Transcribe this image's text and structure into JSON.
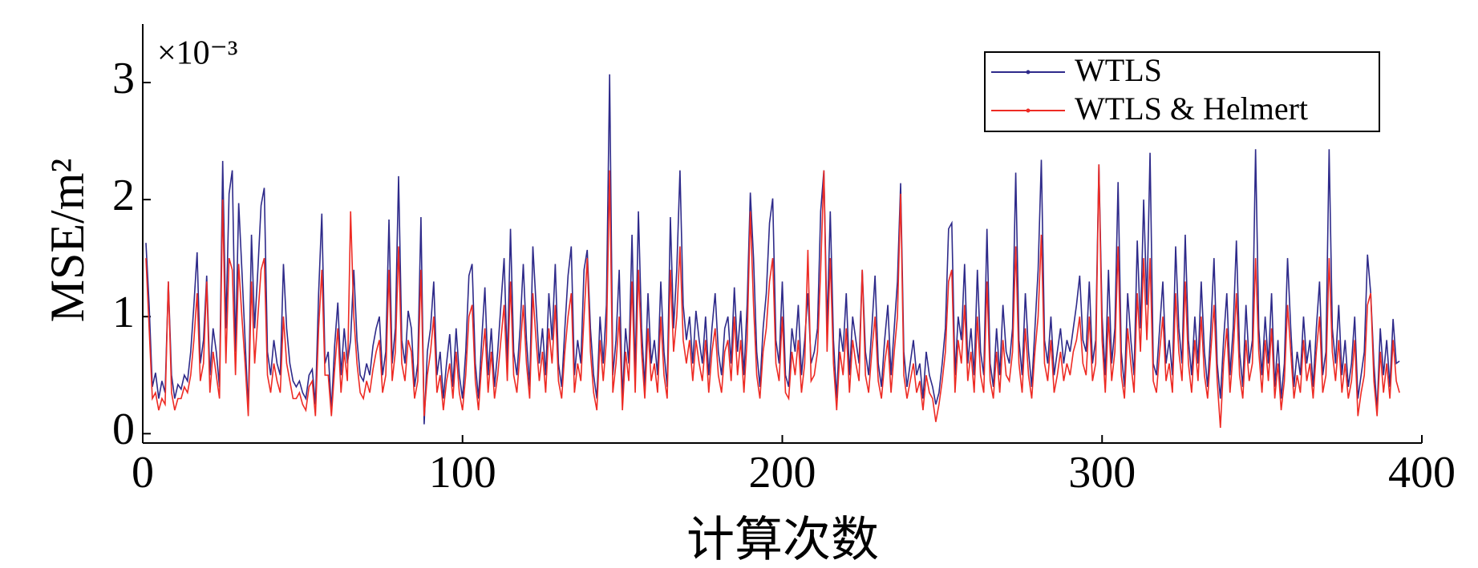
{
  "chart_data": {
    "type": "line",
    "ylabel": "MSE/m²",
    "xlabel": "计算次数",
    "multiplier": "×10⁻³",
    "xlim": [
      0,
      400
    ],
    "xticks": [
      0,
      100,
      200,
      300,
      400
    ],
    "ylim": [
      -0.08,
      3.5
    ],
    "yticks": [
      0,
      1,
      2,
      3
    ],
    "legend": "upper right",
    "x": [
      1,
      2,
      3,
      4,
      5,
      6,
      7,
      8,
      9,
      10,
      11,
      12,
      13,
      14,
      15,
      16,
      17,
      18,
      19,
      20,
      21,
      22,
      23,
      24,
      25,
      26,
      27,
      28,
      29,
      30,
      31,
      32,
      33,
      34,
      35,
      36,
      37,
      38,
      39,
      40,
      41,
      42,
      43,
      44,
      45,
      46,
      47,
      48,
      49,
      50,
      51,
      52,
      53,
      54,
      55,
      56,
      57,
      58,
      59,
      60,
      61,
      62,
      63,
      64,
      65,
      66,
      67,
      68,
      69,
      70,
      71,
      72,
      73,
      74,
      75,
      76,
      77,
      78,
      79,
      80,
      81,
      82,
      83,
      84,
      85,
      86,
      87,
      88,
      89,
      90,
      91,
      92,
      93,
      94,
      95,
      96,
      97,
      98,
      99,
      100,
      101,
      102,
      103,
      104,
      105,
      106,
      107,
      108,
      109,
      110,
      111,
      112,
      113,
      114,
      115,
      116,
      117,
      118,
      119,
      120,
      121,
      122,
      123,
      124,
      125,
      126,
      127,
      128,
      129,
      130,
      131,
      132,
      133,
      134,
      135,
      136,
      137,
      138,
      139,
      140,
      141,
      142,
      143,
      144,
      145,
      146,
      147,
      148,
      149,
      150,
      151,
      152,
      153,
      154,
      155,
      156,
      157,
      158,
      159,
      160,
      161,
      162,
      163,
      164,
      165,
      166,
      167,
      168,
      169,
      170,
      171,
      172,
      173,
      174,
      175,
      176,
      177,
      178,
      179,
      180,
      181,
      182,
      183,
      184,
      185,
      186,
      187,
      188,
      189,
      190,
      191,
      192,
      193,
      194,
      195,
      196,
      197,
      198,
      199,
      200,
      201,
      202,
      203,
      204,
      205,
      206,
      207,
      208,
      209,
      210,
      211,
      212,
      213,
      214,
      215,
      216,
      217,
      218,
      219,
      220,
      221,
      222,
      223,
      224,
      225,
      226,
      227,
      228,
      229,
      230,
      231,
      232,
      233,
      234,
      235,
      236,
      237,
      238,
      239,
      240,
      241,
      242,
      243,
      244,
      245,
      246,
      247,
      248,
      249,
      250,
      251,
      252,
      253,
      254,
      255,
      256,
      257,
      258,
      259,
      260,
      261,
      262,
      263,
      264,
      265,
      266,
      267,
      268,
      269,
      270,
      271,
      272,
      273,
      274,
      275,
      276,
      277,
      278,
      279,
      280,
      281,
      282,
      283,
      284,
      285,
      286,
      287,
      288,
      289,
      290,
      291,
      292,
      293,
      294,
      295,
      296,
      297,
      298,
      299,
      300,
      301,
      302,
      303,
      304,
      305,
      306,
      307,
      308,
      309,
      310,
      311,
      312,
      313,
      314,
      315,
      316,
      317,
      318,
      319,
      320,
      321,
      322,
      323,
      324,
      325,
      326,
      327,
      328,
      329,
      330,
      331,
      332,
      333,
      334,
      335,
      336,
      337,
      338,
      339,
      340,
      341,
      342,
      343,
      344,
      345,
      346,
      347,
      348,
      349,
      350,
      351,
      352,
      353,
      354,
      355,
      356,
      357,
      358,
      359,
      360,
      361,
      362,
      363,
      364,
      365,
      366,
      367,
      368,
      369,
      370,
      371,
      372,
      373,
      374,
      375,
      376,
      377,
      378,
      379,
      380,
      381,
      382,
      383,
      384,
      385,
      386,
      387,
      388,
      389,
      390,
      391,
      392,
      393
    ],
    "series": [
      {
        "name": "WTLS",
        "color": "#2e2a8a",
        "values": [
          1.63,
          1.1,
          0.4,
          0.52,
          0.3,
          0.45,
          0.35,
          1.3,
          0.5,
          0.3,
          0.42,
          0.38,
          0.5,
          0.45,
          0.7,
          1.1,
          1.55,
          0.6,
          0.8,
          1.35,
          0.5,
          0.9,
          0.7,
          0.4,
          2.33,
          0.9,
          2.05,
          2.25,
          0.7,
          1.97,
          1.4,
          0.8,
          0.2,
          1.7,
          0.9,
          1.4,
          1.95,
          2.1,
          0.7,
          0.5,
          0.8,
          0.6,
          0.5,
          1.45,
          0.9,
          0.6,
          0.45,
          0.4,
          0.45,
          0.35,
          0.3,
          0.5,
          0.55,
          0.25,
          1.2,
          1.88,
          0.6,
          0.7,
          0.2,
          0.75,
          1.12,
          0.5,
          0.9,
          0.6,
          0.8,
          1.4,
          0.8,
          0.5,
          0.45,
          0.6,
          0.5,
          0.75,
          0.9,
          1.0,
          0.5,
          0.7,
          1.83,
          0.6,
          0.9,
          2.2,
          0.8,
          0.6,
          1.05,
          0.9,
          0.4,
          0.6,
          1.85,
          0.08,
          0.7,
          0.9,
          1.3,
          0.5,
          0.7,
          0.3,
          0.6,
          0.85,
          0.4,
          0.9,
          0.5,
          0.3,
          0.7,
          1.35,
          1.45,
          0.6,
          0.3,
          0.8,
          1.25,
          0.5,
          0.9,
          0.4,
          0.7,
          1.1,
          1.5,
          0.6,
          1.75,
          0.7,
          0.5,
          0.9,
          1.45,
          0.8,
          0.4,
          1.6,
          1.1,
          0.6,
          0.9,
          0.5,
          1.2,
          0.8,
          1.45,
          0.6,
          0.4,
          0.9,
          1.35,
          1.6,
          0.5,
          0.8,
          0.6,
          1.4,
          1.57,
          0.9,
          0.5,
          0.3,
          1.0,
          0.6,
          1.1,
          3.07,
          0.5,
          0.8,
          1.4,
          0.3,
          0.9,
          0.6,
          1.7,
          0.5,
          1.9,
          0.9,
          0.4,
          1.2,
          0.6,
          0.8,
          0.5,
          1.3,
          0.7,
          0.4,
          1.85,
          0.9,
          1.4,
          2.25,
          1.1,
          0.8,
          1.0,
          0.6,
          1.05,
          0.8,
          0.6,
          1.0,
          0.5,
          0.9,
          1.2,
          0.7,
          0.5,
          0.9,
          1.0,
          0.6,
          1.25,
          0.7,
          1.05,
          0.5,
          1.1,
          2.06,
          1.5,
          0.7,
          0.4,
          0.9,
          1.2,
          1.8,
          2.01,
          0.8,
          0.6,
          1.3,
          0.5,
          0.4,
          0.9,
          0.7,
          1.1,
          0.5,
          0.8,
          1.2,
          0.6,
          0.7,
          0.9,
          1.9,
          2.25,
          0.9,
          1.9,
          0.8,
          0.3,
          0.9,
          0.7,
          1.2,
          0.5,
          1.0,
          0.8,
          0.6,
          1.4,
          0.7,
          0.5,
          0.9,
          1.35,
          0.6,
          0.4,
          0.8,
          1.1,
          0.5,
          0.9,
          1.3,
          2.14,
          0.7,
          0.4,
          0.6,
          0.8,
          0.5,
          0.6,
          0.3,
          0.7,
          0.5,
          0.4,
          0.25,
          0.35,
          0.6,
          0.9,
          1.75,
          1.8,
          0.5,
          1.0,
          0.8,
          1.45,
          0.6,
          0.9,
          0.5,
          1.4,
          0.7,
          0.5,
          1.75,
          0.6,
          0.4,
          0.9,
          0.5,
          1.1,
          0.7,
          0.6,
          0.9,
          2.23,
          0.8,
          0.5,
          1.2,
          0.7,
          0.4,
          0.9,
          1.4,
          2.34,
          0.8,
          0.6,
          1.0,
          0.5,
          0.7,
          0.9,
          0.6,
          0.8,
          0.7,
          0.9,
          1.1,
          1.35,
          0.8,
          0.7,
          1.3,
          0.6,
          0.8,
          2.3,
          1.0,
          0.5,
          1.4,
          0.6,
          0.9,
          2.15,
          0.7,
          0.4,
          1.2,
          0.8,
          0.5,
          1.65,
          0.9,
          2.0,
          1.1,
          2.4,
          0.6,
          0.5,
          0.9,
          1.3,
          0.6,
          0.8,
          0.5,
          1.6,
          0.9,
          0.6,
          1.7,
          0.8,
          0.5,
          1.0,
          0.6,
          1.3,
          0.7,
          0.4,
          0.9,
          1.5,
          0.6,
          0.3,
          0.8,
          1.2,
          0.5,
          0.9,
          1.65,
          0.7,
          0.4,
          1.1,
          0.6,
          0.8,
          2.43,
          0.9,
          0.5,
          1.0,
          0.6,
          1.2,
          0.4,
          0.8,
          0.3,
          0.6,
          1.5,
          0.9,
          0.4,
          0.7,
          0.5,
          1.0,
          0.6,
          0.8,
          0.4,
          0.9,
          1.3,
          0.5,
          0.7,
          2.43,
          0.9,
          0.6,
          1.1,
          0.5,
          0.8,
          0.4,
          0.6,
          1.0,
          0.3,
          0.5,
          0.7,
          1.53,
          1.2,
          0.6,
          0.2,
          0.9,
          0.5,
          0.8,
          0.4,
          0.98,
          0.6,
          0.62
        ]
      },
      {
        "name": "WTLS & Helmert",
        "color": "#ee2b24",
        "values": [
          1.5,
          0.9,
          0.3,
          0.35,
          0.2,
          0.3,
          0.25,
          1.3,
          0.35,
          0.2,
          0.3,
          0.3,
          0.4,
          0.35,
          0.5,
          0.8,
          1.2,
          0.45,
          0.6,
          1.3,
          0.35,
          0.7,
          0.5,
          0.3,
          2.0,
          0.6,
          1.5,
          1.4,
          0.5,
          1.45,
          1.0,
          0.6,
          0.15,
          1.3,
          0.6,
          1.0,
          1.4,
          1.5,
          0.5,
          0.35,
          0.6,
          0.45,
          0.35,
          1.0,
          0.6,
          0.45,
          0.3,
          0.3,
          0.35,
          0.25,
          0.2,
          0.4,
          0.45,
          0.15,
          0.9,
          1.4,
          0.5,
          0.5,
          0.15,
          0.55,
          0.9,
          0.35,
          0.7,
          0.45,
          1.9,
          1.0,
          0.6,
          0.35,
          0.3,
          0.45,
          0.35,
          0.55,
          0.7,
          0.8,
          0.35,
          0.5,
          1.4,
          0.45,
          0.7,
          1.6,
          0.6,
          0.45,
          0.8,
          0.7,
          0.3,
          0.45,
          1.4,
          0.15,
          0.5,
          0.7,
          1.0,
          0.35,
          0.5,
          0.2,
          0.45,
          0.6,
          0.3,
          0.7,
          0.35,
          0.2,
          0.5,
          1.0,
          1.1,
          0.45,
          0.2,
          0.6,
          0.9,
          0.35,
          0.7,
          0.3,
          0.5,
          0.8,
          1.1,
          0.45,
          1.3,
          0.5,
          0.35,
          0.7,
          1.1,
          0.6,
          0.3,
          1.2,
          0.8,
          0.45,
          0.7,
          0.35,
          0.9,
          0.6,
          1.1,
          0.45,
          0.3,
          0.7,
          1.0,
          1.2,
          0.35,
          0.6,
          0.45,
          1.0,
          1.5,
          0.7,
          0.35,
          0.2,
          0.8,
          0.45,
          0.8,
          2.25,
          0.35,
          0.6,
          1.0,
          0.2,
          0.7,
          0.45,
          1.3,
          0.35,
          1.4,
          0.7,
          0.3,
          0.9,
          0.45,
          0.6,
          0.35,
          1.0,
          0.5,
          0.3,
          1.4,
          0.7,
          1.0,
          1.6,
          0.8,
          0.6,
          0.8,
          0.45,
          0.8,
          0.6,
          0.45,
          0.8,
          0.35,
          0.7,
          0.9,
          0.5,
          0.35,
          0.7,
          0.8,
          0.45,
          1.0,
          0.5,
          0.8,
          0.35,
          0.8,
          1.9,
          1.1,
          0.5,
          0.3,
          0.7,
          0.9,
          1.3,
          1.5,
          0.6,
          0.45,
          1.0,
          0.35,
          0.3,
          0.7,
          0.5,
          0.8,
          0.35,
          0.6,
          1.57,
          0.45,
          0.5,
          0.7,
          1.4,
          2.25,
          0.7,
          1.5,
          0.6,
          0.2,
          0.7,
          0.5,
          0.9,
          0.35,
          0.8,
          0.6,
          0.45,
          1.4,
          0.5,
          0.35,
          0.7,
          1.0,
          0.45,
          0.3,
          0.6,
          0.8,
          0.35,
          0.7,
          1.0,
          2.05,
          0.5,
          0.3,
          0.45,
          0.6,
          0.35,
          0.45,
          0.2,
          0.5,
          0.35,
          0.3,
          0.1,
          0.25,
          0.45,
          0.7,
          1.3,
          1.4,
          0.35,
          0.8,
          0.6,
          1.1,
          0.45,
          0.7,
          0.35,
          1.0,
          0.5,
          0.35,
          1.3,
          0.45,
          0.3,
          0.7,
          0.35,
          0.8,
          0.5,
          0.45,
          0.7,
          1.6,
          0.6,
          0.35,
          0.9,
          0.5,
          0.3,
          0.7,
          1.0,
          1.7,
          0.6,
          0.45,
          0.8,
          0.35,
          0.5,
          0.7,
          0.45,
          0.6,
          0.5,
          0.7,
          0.8,
          1.0,
          0.6,
          0.5,
          1.0,
          0.45,
          0.6,
          2.3,
          0.8,
          0.35,
          1.0,
          0.45,
          0.7,
          1.6,
          0.5,
          0.3,
          0.9,
          0.6,
          0.35,
          1.2,
          0.7,
          1.5,
          0.8,
          1.5,
          0.45,
          0.35,
          0.7,
          1.0,
          0.45,
          0.6,
          0.35,
          1.2,
          0.7,
          0.45,
          1.3,
          0.6,
          0.35,
          0.8,
          0.45,
          1.0,
          0.5,
          0.3,
          0.7,
          1.1,
          0.45,
          0.05,
          0.6,
          0.9,
          0.35,
          0.7,
          1.2,
          0.5,
          0.3,
          0.8,
          0.45,
          0.6,
          1.5,
          0.7,
          0.35,
          0.8,
          0.45,
          0.9,
          0.3,
          0.6,
          0.2,
          0.45,
          1.1,
          0.7,
          0.3,
          0.5,
          0.35,
          0.8,
          0.45,
          0.6,
          0.3,
          0.7,
          1.0,
          0.35,
          0.5,
          1.5,
          0.7,
          0.45,
          0.8,
          0.35,
          0.6,
          0.3,
          0.45,
          0.8,
          0.15,
          0.35,
          0.5,
          1.1,
          1.2,
          0.45,
          0.15,
          0.7,
          0.35,
          0.6,
          0.3,
          0.8,
          0.45,
          0.35
        ]
      }
    ]
  }
}
